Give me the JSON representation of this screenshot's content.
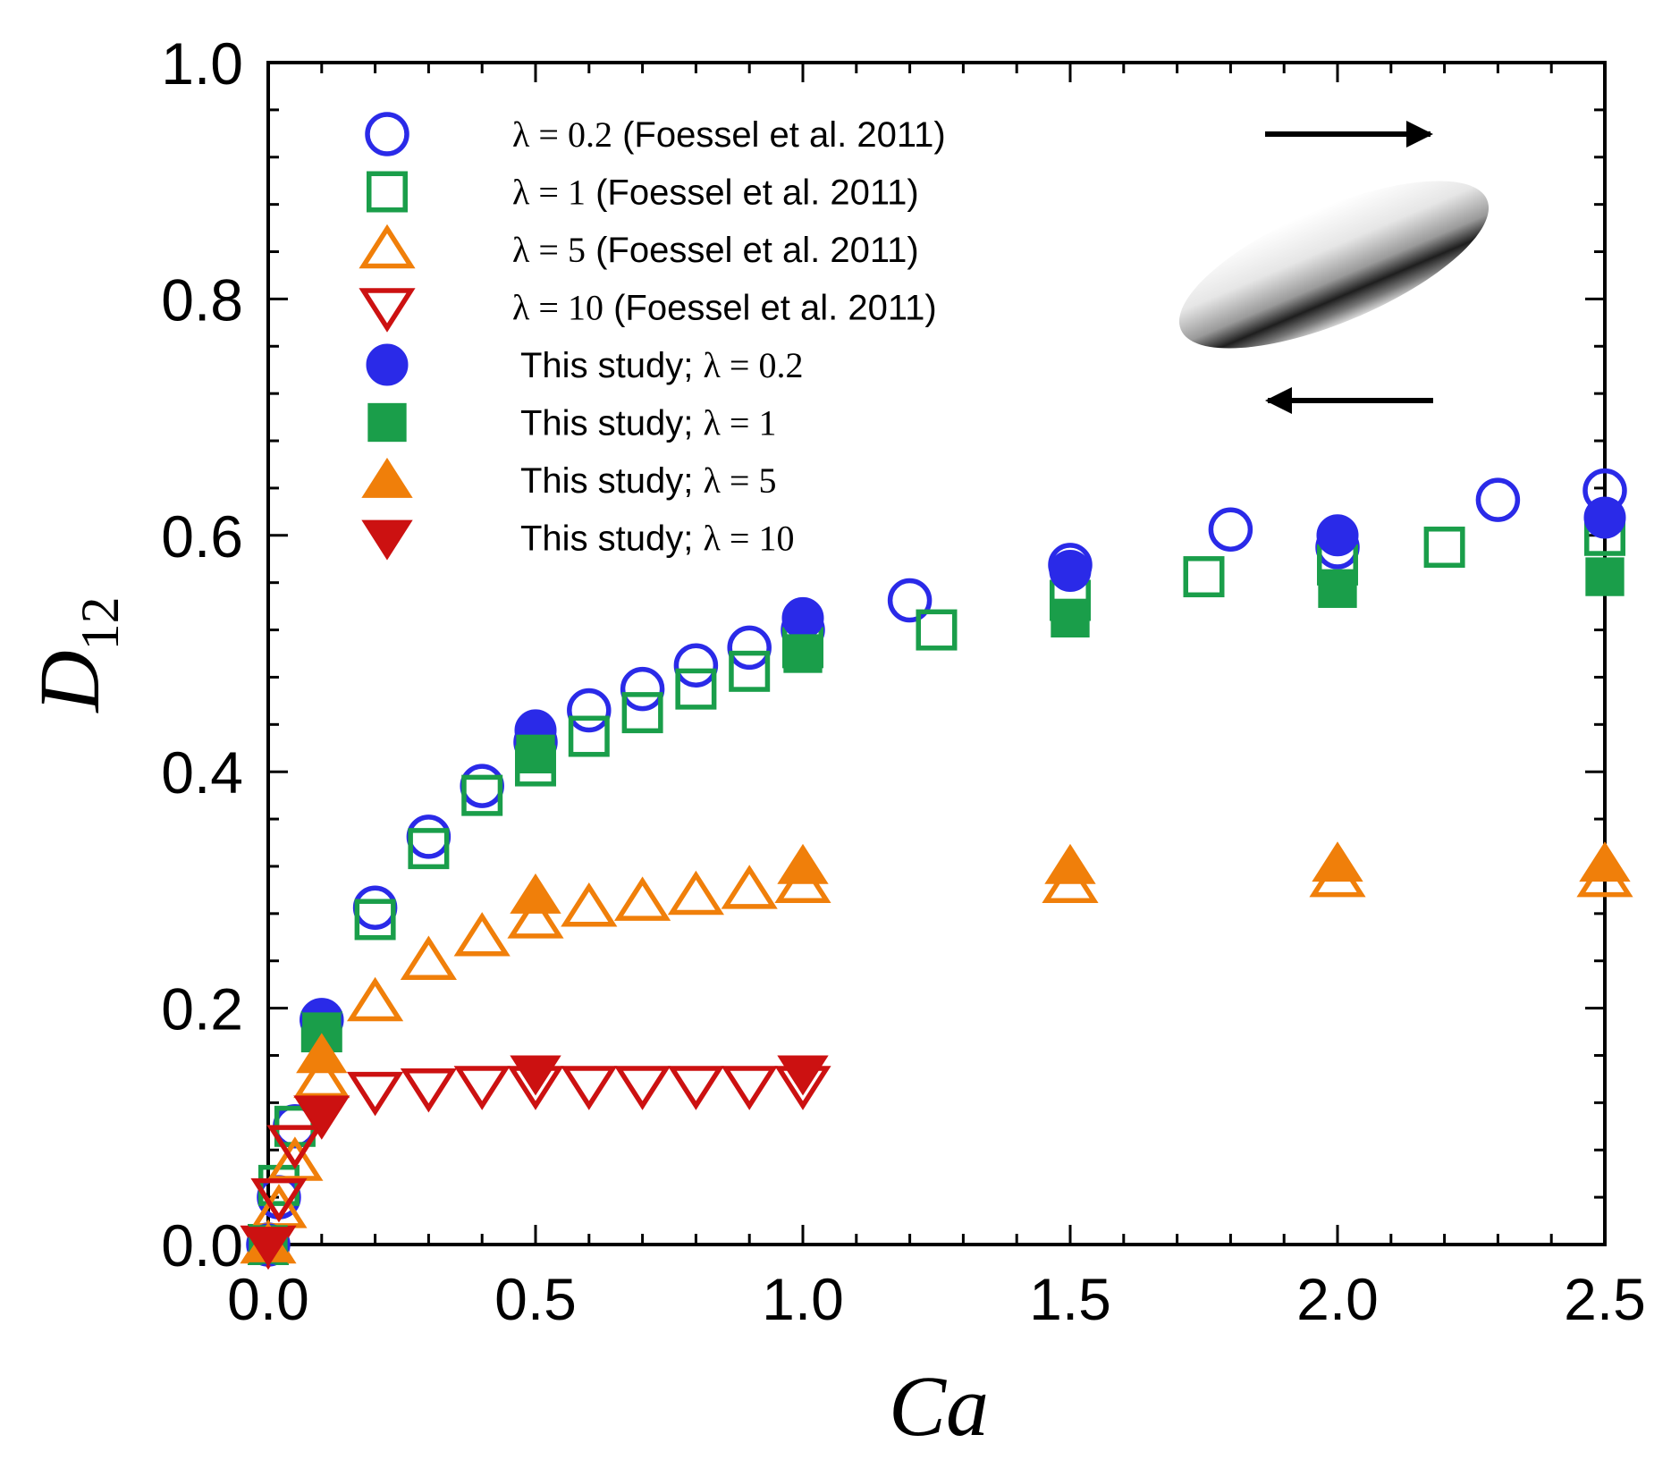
{
  "chart_data": {
    "type": "scatter",
    "xlabel": "Ca",
    "ylabel": "D",
    "ylabel_subscript": "12",
    "xlim": [
      0.0,
      2.5
    ],
    "ylim": [
      0.0,
      1.0
    ],
    "xticks": [
      0.0,
      0.5,
      1.0,
      1.5,
      2.0,
      2.5
    ],
    "xtick_labels": [
      "0.0",
      "0.5",
      "1.0",
      "1.5",
      "2.0",
      "2.5"
    ],
    "yticks": [
      0.0,
      0.2,
      0.4,
      0.6,
      0.8,
      1.0
    ],
    "ytick_labels": [
      "0.0",
      "0.2",
      "0.4",
      "0.6",
      "0.8",
      "1.0"
    ],
    "grid": false,
    "legend_position": "top-left",
    "inset": "sheared ellipsoidal drop with opposing shear-flow arrows (top arrow pointing right, bottom arrow pointing left)",
    "series": [
      {
        "legend_lambda": "λ = 0.2",
        "legend_suffix": " (Foessel et al. 2011)",
        "marker": "circle",
        "filled": false,
        "color": "#2a2ae8",
        "x": [
          0.0,
          0.02,
          0.05,
          0.1,
          0.2,
          0.3,
          0.4,
          0.5,
          0.6,
          0.7,
          0.8,
          0.9,
          1.0,
          1.2,
          1.5,
          1.8,
          2.0,
          2.3,
          2.5
        ],
        "y": [
          0.0,
          0.04,
          0.1,
          0.19,
          0.285,
          0.345,
          0.388,
          0.425,
          0.452,
          0.47,
          0.49,
          0.505,
          0.52,
          0.545,
          0.575,
          0.605,
          0.59,
          0.63,
          0.638
        ]
      },
      {
        "legend_lambda": "λ = 1",
        "legend_suffix": " (Foessel et al. 2011)",
        "marker": "square",
        "filled": false,
        "color": "#1a9e4a",
        "x": [
          0.0,
          0.02,
          0.05,
          0.1,
          0.2,
          0.3,
          0.4,
          0.5,
          0.6,
          0.7,
          0.8,
          0.9,
          1.0,
          1.25,
          1.5,
          1.75,
          2.0,
          2.2,
          2.5
        ],
        "y": [
          0.0,
          0.05,
          0.1,
          0.18,
          0.275,
          0.335,
          0.38,
          0.405,
          0.43,
          0.45,
          0.47,
          0.485,
          0.505,
          0.52,
          0.545,
          0.565,
          0.575,
          0.59,
          0.6
        ]
      },
      {
        "legend_lambda": "λ = 5",
        "legend_suffix": " (Foessel et al. 2011)",
        "marker": "triangle-up",
        "filled": false,
        "color": "#f07f0a",
        "x": [
          0.0,
          0.02,
          0.05,
          0.1,
          0.2,
          0.3,
          0.4,
          0.5,
          0.6,
          0.7,
          0.8,
          0.9,
          1.0,
          1.5,
          2.0,
          2.5
        ],
        "y": [
          0.0,
          0.03,
          0.07,
          0.14,
          0.205,
          0.24,
          0.26,
          0.275,
          0.285,
          0.29,
          0.295,
          0.3,
          0.305,
          0.305,
          0.31,
          0.31
        ]
      },
      {
        "legend_lambda": "λ = 10",
        "legend_suffix": " (Foessel et al. 2011)",
        "marker": "triangle-down",
        "filled": false,
        "color": "#cc1111",
        "x": [
          0.0,
          0.02,
          0.05,
          0.1,
          0.2,
          0.3,
          0.4,
          0.5,
          0.6,
          0.7,
          0.8,
          0.9,
          1.0
        ],
        "y": [
          0.0,
          0.04,
          0.085,
          0.11,
          0.13,
          0.133,
          0.135,
          0.135,
          0.135,
          0.135,
          0.135,
          0.135,
          0.135
        ]
      },
      {
        "legend_prefix": "This study; ",
        "legend_lambda": "λ = 0.2",
        "marker": "circle",
        "filled": true,
        "color": "#2a2ae8",
        "x": [
          0.0,
          0.1,
          0.5,
          1.0,
          1.5,
          2.0,
          2.5
        ],
        "y": [
          0.0,
          0.19,
          0.435,
          0.53,
          0.57,
          0.6,
          0.615
        ]
      },
      {
        "legend_prefix": "This study; ",
        "legend_lambda": "λ = 1",
        "marker": "square",
        "filled": true,
        "color": "#1a9e4a",
        "x": [
          0.0,
          0.1,
          0.5,
          1.0,
          1.5,
          2.0,
          2.5
        ],
        "y": [
          0.0,
          0.18,
          0.415,
          0.5,
          0.53,
          0.555,
          0.565
        ]
      },
      {
        "legend_prefix": "This study; ",
        "legend_lambda": "λ = 5",
        "marker": "triangle-up",
        "filled": true,
        "color": "#f07f0a",
        "x": [
          0.0,
          0.1,
          0.5,
          1.0,
          1.5,
          2.0,
          2.5
        ],
        "y": [
          0.0,
          0.16,
          0.295,
          0.32,
          0.32,
          0.322,
          0.322
        ]
      },
      {
        "legend_prefix": "This study; ",
        "legend_lambda": "λ = 10",
        "marker": "triangle-down",
        "filled": true,
        "color": "#cc1111",
        "x": [
          0.0,
          0.1,
          0.5,
          1.0
        ],
        "y": [
          0.0,
          0.11,
          0.145,
          0.145
        ]
      }
    ]
  }
}
